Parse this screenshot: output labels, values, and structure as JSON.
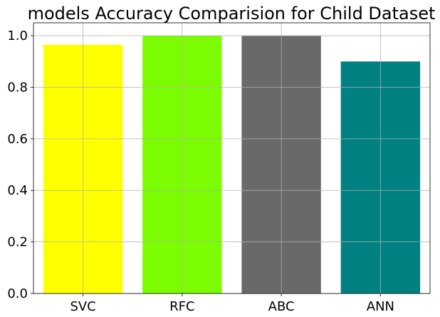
{
  "chart_data": {
    "type": "bar",
    "title": "models Accuracy Comparision for Child Dataset",
    "xlabel": "",
    "ylabel": "",
    "categories": [
      "SVC",
      "RFC",
      "ABC",
      "ANN"
    ],
    "values": [
      0.965,
      1.0,
      1.0,
      0.9
    ],
    "colors": [
      "#ffff00",
      "#7cfc00",
      "#696969",
      "#008080"
    ],
    "ylim": [
      0,
      1.05
    ],
    "yticks": [
      0.0,
      0.2,
      0.4,
      0.6,
      0.8,
      1.0
    ],
    "ytick_labels": [
      "0.0",
      "0.2",
      "0.4",
      "0.6",
      "0.8",
      "1.0"
    ],
    "grid": true,
    "legend": "none"
  }
}
